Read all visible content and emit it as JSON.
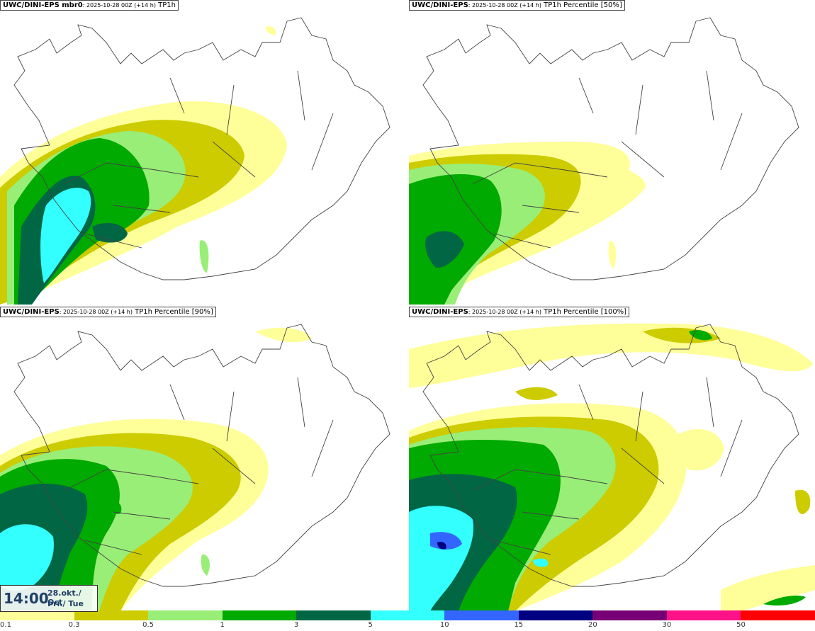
{
  "panels": [
    {
      "model": "UWC/DINI-EPS mbr0",
      "run": ": 2025-10-28 00Z (+14 h)",
      "field": " TP1h"
    },
    {
      "model": "UWC/DINI-EPS",
      "run": ": 2025-10-28 00Z (+14 h)",
      "field": " TP1h Percentile [50%]"
    },
    {
      "model": "UWC/DINI-EPS",
      "run": ": 2025-10-28 00Z (+14 h)",
      "field": " TP1h Percentile [90%]"
    },
    {
      "model": "UWC/DINI-EPS",
      "run": ": 2025-10-28 00Z (+14 h)",
      "field": " TP1h Percentile [100%]"
    }
  ],
  "time": {
    "hour": "14:00",
    "date": "28.okt./ Oct",
    "weekday": "Þri./ Tue"
  },
  "legend": {
    "colors": [
      "#ffff99",
      "#cccc00",
      "#99ee77",
      "#00aa00",
      "#006644",
      "#33ffff",
      "#3366ff",
      "#000080",
      "#770077",
      "#ff1188",
      "#ff0000"
    ],
    "ticks": [
      "0.1",
      "0.3",
      "0.5",
      "1",
      "3",
      "5",
      "10",
      "15",
      "20",
      "30",
      "50"
    ]
  }
}
